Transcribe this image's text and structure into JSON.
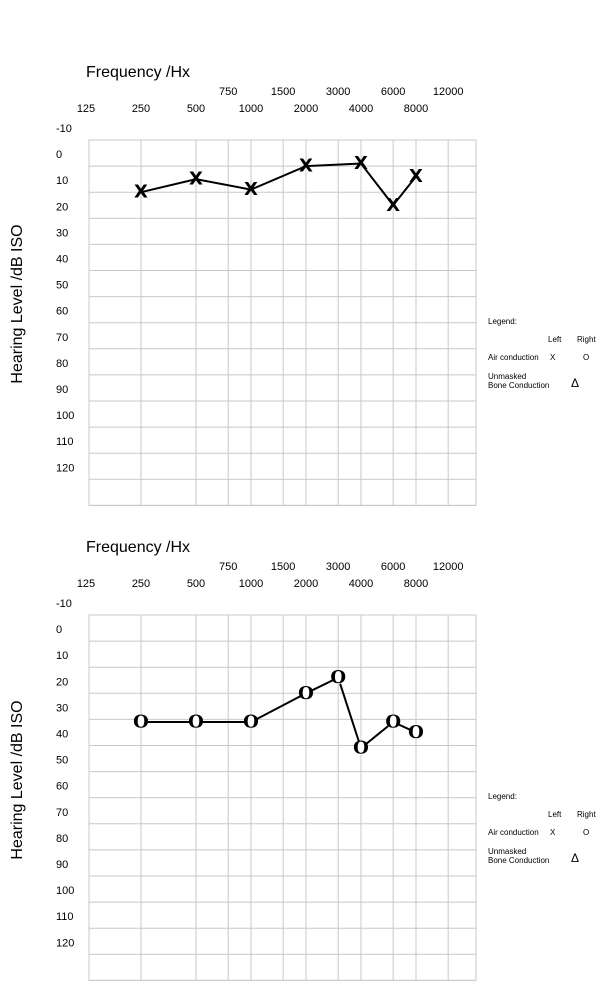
{
  "chart_data": [
    {
      "type": "line",
      "xlabel": "Frequency  /Hx",
      "ylabel": "Hearing Level   /dB ISO",
      "x_ticks_upper": [
        "750",
        "1500",
        "3000",
        "6000",
        "12000"
      ],
      "x_ticks_lower": [
        "125",
        "250",
        "500",
        "1000",
        "2000",
        "4000",
        "8000"
      ],
      "y_ticks": [
        "-10",
        "0",
        "10",
        "20",
        "30",
        "40",
        "50",
        "60",
        "70",
        "80",
        "90",
        "100",
        "110",
        "120"
      ],
      "ylim": [
        -10,
        130
      ],
      "y_inverted": true,
      "x_scale": "log",
      "grid": true,
      "series": [
        {
          "marker": "X",
          "points": [
            {
              "x": 250,
              "y": 10
            },
            {
              "x": 500,
              "y": 5
            },
            {
              "x": 1000,
              "y": 9
            },
            {
              "x": 2000,
              "y": 0
            },
            {
              "x": 4000,
              "y": -1
            },
            {
              "x": 6000,
              "y": 15
            },
            {
              "x": 8000,
              "y": 4
            }
          ]
        }
      ],
      "legend": {
        "title": "Legend:",
        "col_left": "Left",
        "col_right": "Right",
        "air_label": "Air conduction",
        "air_left": "X",
        "air_right": "O",
        "bone_label_1": "Unmasked",
        "bone_label_2": "Bone Conduction",
        "bone_symbol": "Δ",
        "placement": "right"
      }
    },
    {
      "type": "line",
      "xlabel": "Frequency  /Hx",
      "ylabel": "Hearing Level   /dB ISO",
      "x_ticks_upper": [
        "750",
        "1500",
        "3000",
        "6000",
        "12000"
      ],
      "x_ticks_lower": [
        "125",
        "250",
        "500",
        "1000",
        "2000",
        "4000",
        "8000"
      ],
      "y_ticks": [
        "-10",
        "0",
        "10",
        "20",
        "30",
        "40",
        "50",
        "60",
        "70",
        "80",
        "90",
        "100",
        "110",
        "120"
      ],
      "ylim": [
        -10,
        130
      ],
      "y_inverted": true,
      "x_scale": "log",
      "grid": true,
      "series": [
        {
          "marker": "O",
          "points": [
            {
              "x": 250,
              "y": 31
            },
            {
              "x": 500,
              "y": 31
            },
            {
              "x": 1000,
              "y": 31
            },
            {
              "x": 2000,
              "y": 20
            },
            {
              "x": 3000,
              "y": 14
            },
            {
              "x": 4000,
              "y": 41
            },
            {
              "x": 6000,
              "y": 31
            },
            {
              "x": 8000,
              "y": 35
            }
          ]
        }
      ],
      "legend": {
        "title": "Legend:",
        "col_left": "Left",
        "col_right": "Right",
        "air_label": "Air conduction",
        "air_left": "X",
        "air_right": "O",
        "bone_label_1": "Unmasked",
        "bone_label_2": "Bone Conduction",
        "bone_symbol": "Δ",
        "placement": "right"
      }
    }
  ]
}
